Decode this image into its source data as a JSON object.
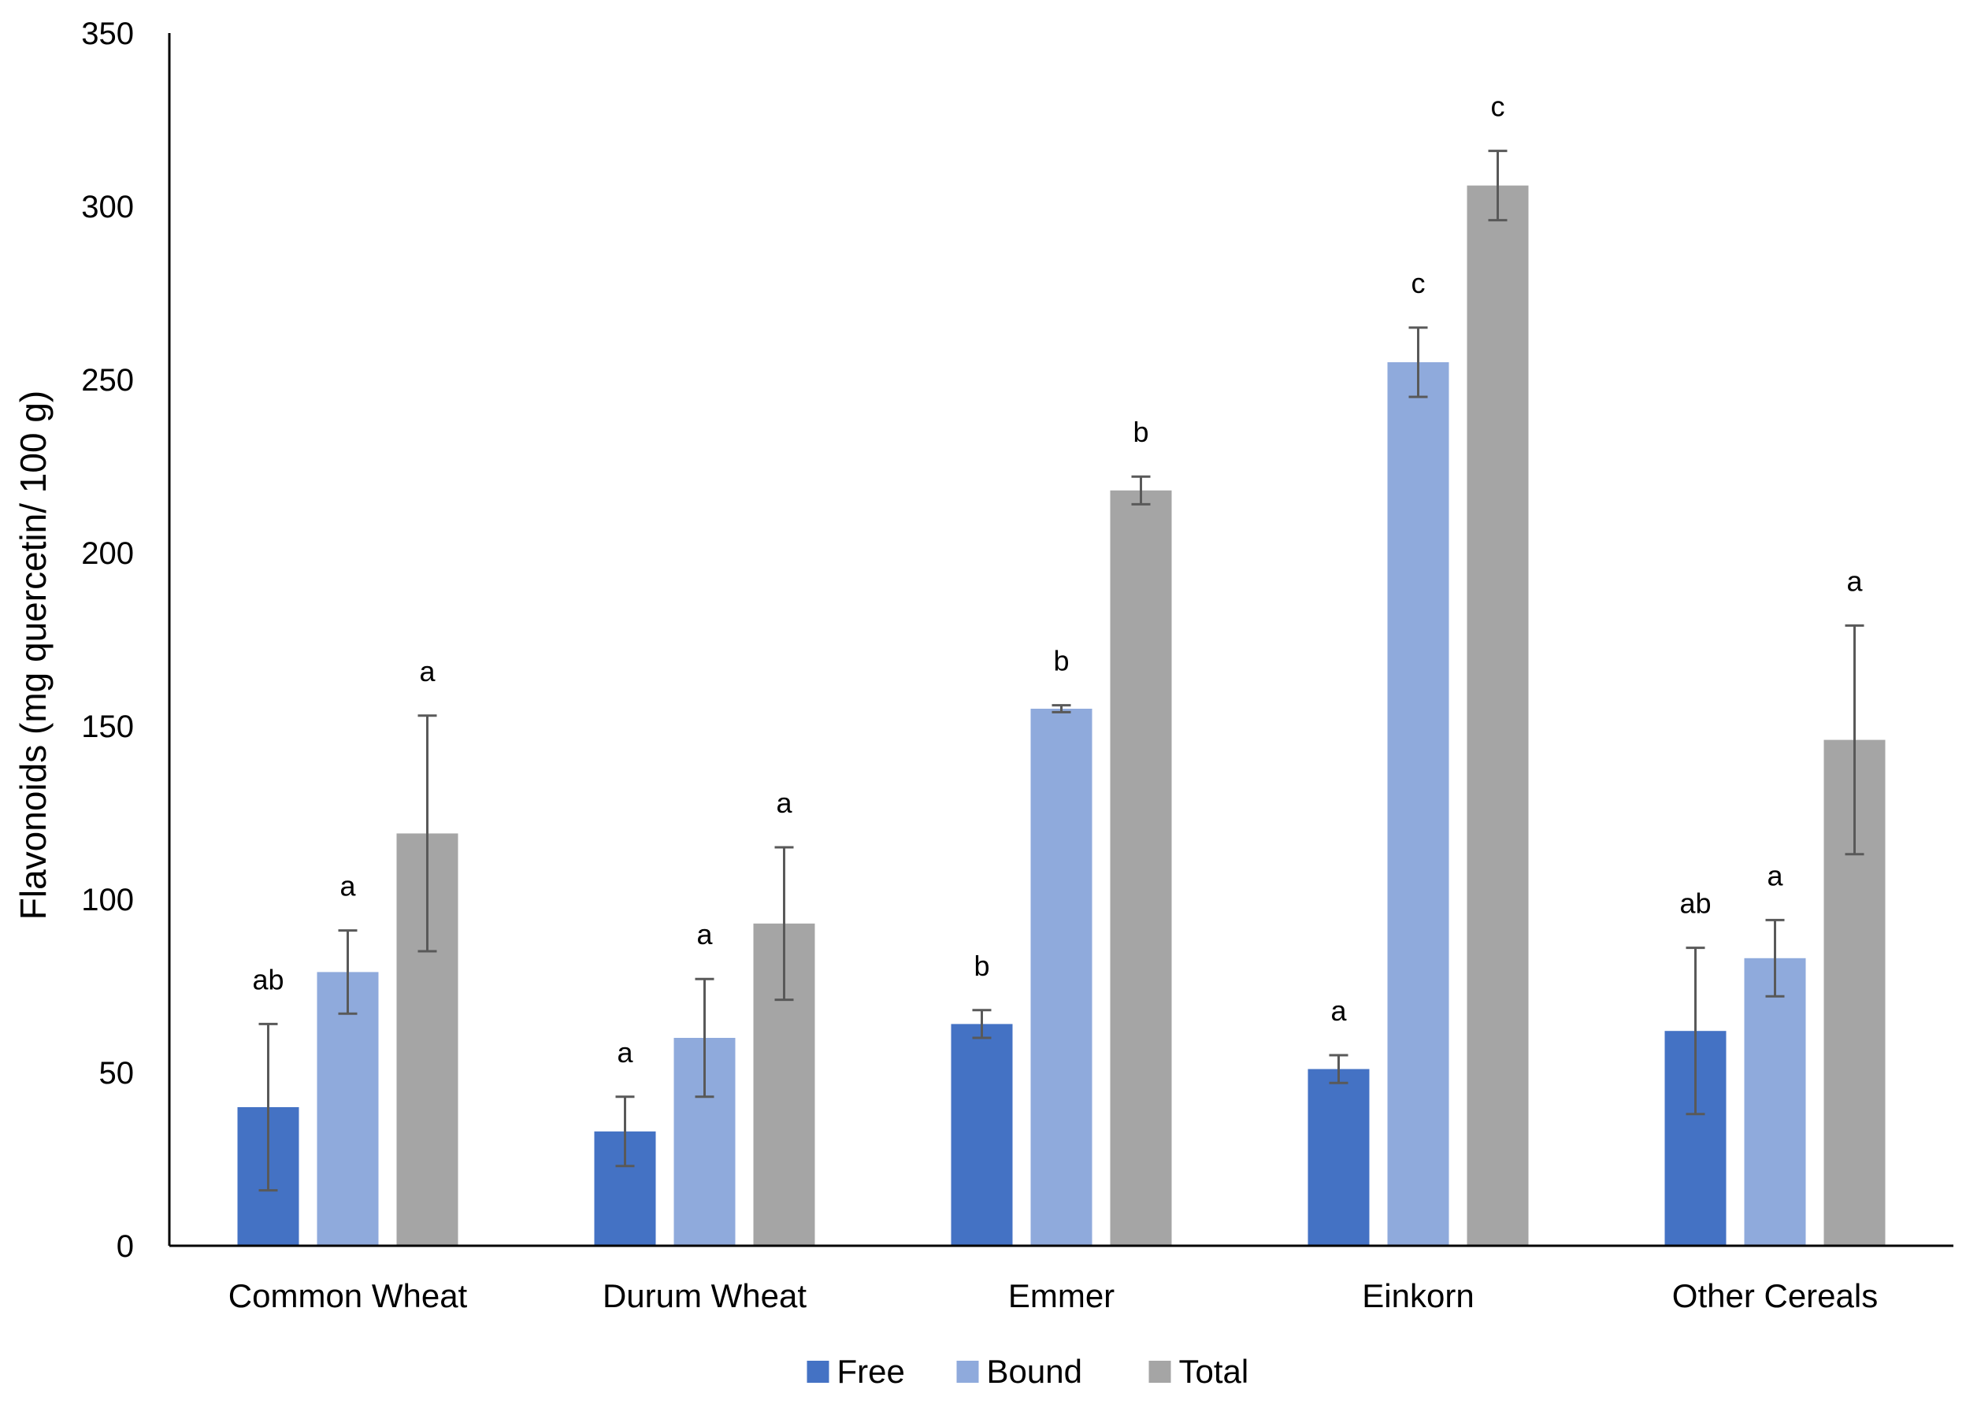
{
  "chart_data": {
    "type": "bar",
    "title": "",
    "xlabel": "",
    "ylabel": "Flavonoids (mg quercetin/ 100 g)",
    "ylim": [
      0,
      350
    ],
    "yticks": [
      0,
      50,
      100,
      150,
      200,
      250,
      300,
      350
    ],
    "grid": false,
    "legend_position": "bottom-center",
    "categories": [
      "Common Wheat",
      "Durum Wheat",
      "Emmer",
      "Einkorn",
      "Other Cereals"
    ],
    "series": [
      {
        "name": "Free",
        "color": "#4472C4",
        "values": [
          40,
          33,
          64,
          51,
          62
        ],
        "errors": [
          24,
          10,
          4,
          4,
          24
        ],
        "labels": [
          "ab",
          "a",
          "b",
          "a",
          "ab"
        ]
      },
      {
        "name": "Bound",
        "color": "#8FAADC",
        "values": [
          79,
          60,
          155,
          255,
          83
        ],
        "errors": [
          12,
          17,
          1,
          10,
          11
        ],
        "labels": [
          "a",
          "a",
          "b",
          "c",
          "a"
        ]
      },
      {
        "name": "Total",
        "color": "#A5A5A5",
        "values": [
          119,
          93,
          218,
          306,
          146
        ],
        "errors": [
          34,
          22,
          4,
          10,
          33
        ],
        "labels": [
          "a",
          "a",
          "b",
          "c",
          "a"
        ]
      }
    ]
  }
}
